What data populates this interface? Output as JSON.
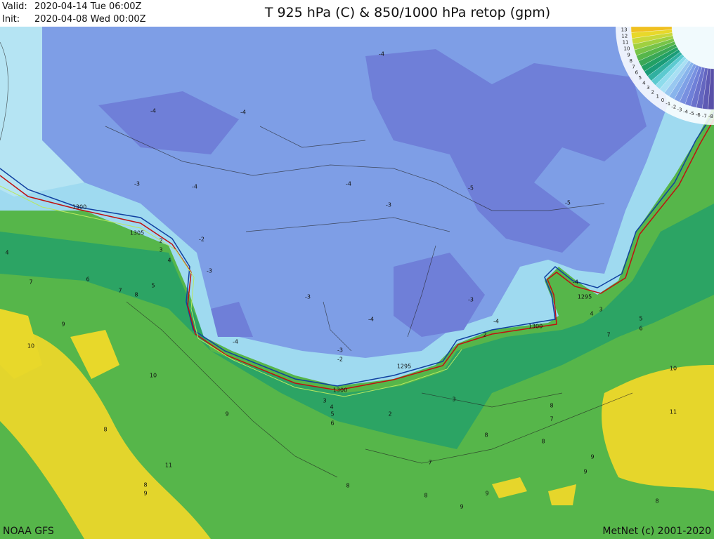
{
  "header": {
    "valid_label": "Valid:",
    "valid": "2020-04-14 Tue  06:00Z",
    "init_label": "Init:",
    "init": "2020-04-08 Wed 00:00Z",
    "title": "T 925 hPa (C) & 850/1000 hPa retop (gpm)"
  },
  "map": {
    "contour_labels": [
      "-4",
      "-4",
      "-4",
      "-3",
      "-4",
      "-4",
      "-3",
      "-5",
      "-5",
      "1300",
      "1305",
      "-2",
      "2",
      "3",
      "4",
      "4",
      "-3",
      "6",
      "7",
      "5",
      "7",
      "8",
      "-4",
      "1295",
      "-3",
      "-3",
      "3",
      "4",
      "5",
      "6",
      "-4",
      "9",
      "-4",
      "1300",
      "2",
      "7",
      "-4",
      "10",
      "-3",
      "-2",
      "1295",
      "10",
      "10",
      "1300",
      "3",
      "4",
      "3",
      "5",
      "6",
      "2",
      "8",
      "7",
      "11",
      "8",
      "9",
      "8",
      "8",
      "9",
      "11",
      "7",
      "9",
      "8",
      "8",
      "9",
      "9",
      "8",
      "9",
      "8"
    ]
  },
  "legend": {
    "labels": [
      "13",
      "12",
      "11",
      "10",
      "9",
      "8",
      "7",
      "6",
      "5",
      "4",
      "3",
      "2",
      "1",
      "0",
      "-1",
      "-2",
      "-3",
      "-4",
      "-5",
      "-6",
      "-7",
      "-8"
    ]
  },
  "footer": {
    "source": "NOAA GFS",
    "credit": "MetNet (c) 2001-2020"
  }
}
